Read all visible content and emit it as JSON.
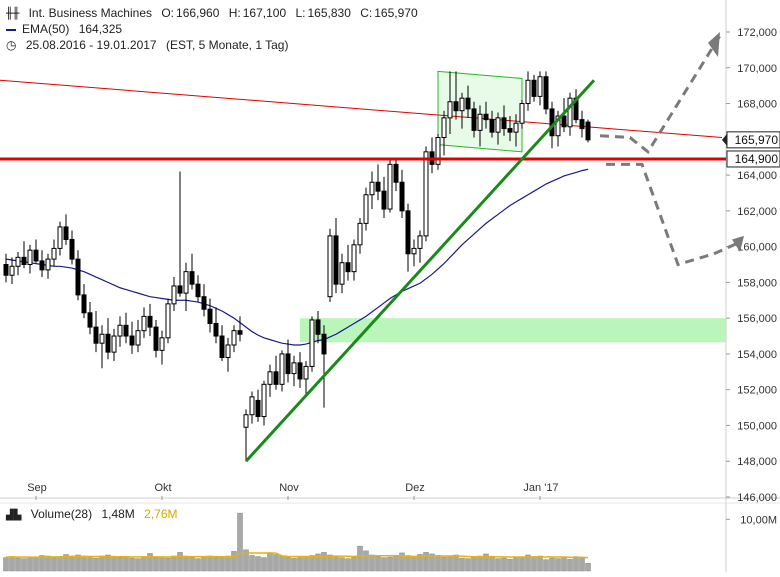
{
  "header": {
    "instrument": "Int. Business Machines",
    "open_label": "O:",
    "open": "166,960",
    "high_label": "H:",
    "high": "167,100",
    "low_label": "L:",
    "low": "165,830",
    "close_label": "C:",
    "close": "165,970",
    "ema_label": "EMA(50)",
    "ema_value": "164,325",
    "range": "25.08.2016 - 19.01.2017",
    "range_info": "(EST, 5 Monate, 1 Tag)"
  },
  "volume_header": {
    "label": "Volume(28)",
    "value": "1,48M",
    "avg": "2,76M"
  },
  "colors": {
    "candle": "#000000",
    "ema": "#1a1a8c",
    "support_line": "#e00000",
    "trend_line": "#1a8a1a",
    "channel": "#22bb22",
    "zone": "#aef5ae",
    "arrows": "#7a7a7a",
    "volume_bar": "#a8a8a8",
    "volume_avg": "#e8b400"
  },
  "chart_data": {
    "type": "candlestick",
    "title": "Int. Business Machines",
    "ylim": [
      146,
      172
    ],
    "y_ticks": [
      "172,000",
      "170,000",
      "168,000",
      "166,000",
      "164,000",
      "162,000",
      "160,000",
      "158,000",
      "156,000",
      "154,000",
      "152,000",
      "150,000",
      "148,000",
      "146,000"
    ],
    "x_ticks": [
      "Sep",
      "Okt",
      "Nov",
      "Dez",
      "Jan '17"
    ],
    "price_labels": {
      "last": "165,970",
      "support": "164,900"
    },
    "volume_tick": "10,00M",
    "candles": [
      {
        "o": 159.0,
        "h": 159.6,
        "l": 158.0,
        "c": 158.4
      },
      {
        "o": 158.4,
        "h": 159.4,
        "l": 157.9,
        "c": 158.9
      },
      {
        "o": 158.9,
        "h": 159.7,
        "l": 158.4,
        "c": 159.4
      },
      {
        "o": 159.4,
        "h": 160.3,
        "l": 158.8,
        "c": 159.0
      },
      {
        "o": 159.0,
        "h": 160.1,
        "l": 158.5,
        "c": 159.8
      },
      {
        "o": 159.8,
        "h": 160.4,
        "l": 159.1,
        "c": 159.2
      },
      {
        "o": 159.2,
        "h": 159.8,
        "l": 158.3,
        "c": 158.7
      },
      {
        "o": 158.7,
        "h": 159.6,
        "l": 158.2,
        "c": 159.3
      },
      {
        "o": 159.3,
        "h": 160.4,
        "l": 158.9,
        "c": 159.9
      },
      {
        "o": 159.9,
        "h": 161.4,
        "l": 159.5,
        "c": 161.1
      },
      {
        "o": 161.1,
        "h": 161.8,
        "l": 160.1,
        "c": 160.4
      },
      {
        "o": 160.4,
        "h": 160.9,
        "l": 159.0,
        "c": 159.3
      },
      {
        "o": 159.3,
        "h": 159.8,
        "l": 157.0,
        "c": 157.3
      },
      {
        "o": 157.3,
        "h": 157.9,
        "l": 156.0,
        "c": 156.3
      },
      {
        "o": 156.3,
        "h": 156.9,
        "l": 155.1,
        "c": 155.5
      },
      {
        "o": 155.5,
        "h": 156.4,
        "l": 154.1,
        "c": 154.6
      },
      {
        "o": 154.6,
        "h": 155.6,
        "l": 153.2,
        "c": 155.1
      },
      {
        "o": 155.1,
        "h": 156.0,
        "l": 153.7,
        "c": 154.1
      },
      {
        "o": 154.1,
        "h": 155.4,
        "l": 153.6,
        "c": 155.0
      },
      {
        "o": 155.0,
        "h": 156.1,
        "l": 154.4,
        "c": 155.6
      },
      {
        "o": 155.6,
        "h": 156.3,
        "l": 154.6,
        "c": 155.0
      },
      {
        "o": 155.0,
        "h": 155.8,
        "l": 154.0,
        "c": 154.5
      },
      {
        "o": 154.5,
        "h": 155.9,
        "l": 154.1,
        "c": 155.3
      },
      {
        "o": 155.3,
        "h": 156.6,
        "l": 154.9,
        "c": 156.1
      },
      {
        "o": 156.1,
        "h": 156.8,
        "l": 155.0,
        "c": 155.5
      },
      {
        "o": 155.5,
        "h": 155.9,
        "l": 153.8,
        "c": 154.2
      },
      {
        "o": 154.2,
        "h": 155.3,
        "l": 153.4,
        "c": 154.9
      },
      {
        "o": 154.9,
        "h": 157.1,
        "l": 154.6,
        "c": 156.8
      },
      {
        "o": 156.8,
        "h": 158.3,
        "l": 156.4,
        "c": 157.8
      },
      {
        "o": 157.8,
        "h": 164.2,
        "l": 157.2,
        "c": 157.4
      },
      {
        "o": 157.4,
        "h": 159.1,
        "l": 156.4,
        "c": 158.6
      },
      {
        "o": 158.6,
        "h": 159.6,
        "l": 157.6,
        "c": 157.9
      },
      {
        "o": 157.9,
        "h": 158.4,
        "l": 156.9,
        "c": 157.2
      },
      {
        "o": 157.2,
        "h": 157.9,
        "l": 156.1,
        "c": 156.5
      },
      {
        "o": 156.5,
        "h": 157.1,
        "l": 155.2,
        "c": 155.7
      },
      {
        "o": 155.7,
        "h": 156.6,
        "l": 154.6,
        "c": 155.0
      },
      {
        "o": 155.0,
        "h": 155.6,
        "l": 153.6,
        "c": 153.8
      },
      {
        "o": 153.8,
        "h": 154.9,
        "l": 153.0,
        "c": 154.5
      },
      {
        "o": 154.5,
        "h": 155.6,
        "l": 154.1,
        "c": 155.3
      },
      {
        "o": 155.3,
        "h": 156.1,
        "l": 154.7,
        "c": 155.1
      },
      {
        "o": 149.9,
        "h": 150.9,
        "l": 148.0,
        "c": 150.6
      },
      {
        "o": 150.6,
        "h": 151.9,
        "l": 150.1,
        "c": 151.6
      },
      {
        "o": 151.4,
        "h": 152.0,
        "l": 150.2,
        "c": 150.5
      },
      {
        "o": 150.5,
        "h": 152.5,
        "l": 150.0,
        "c": 152.3
      },
      {
        "o": 152.3,
        "h": 153.4,
        "l": 151.6,
        "c": 153.0
      },
      {
        "o": 153.0,
        "h": 153.9,
        "l": 152.0,
        "c": 152.3
      },
      {
        "o": 152.3,
        "h": 154.2,
        "l": 151.9,
        "c": 154.0
      },
      {
        "o": 154.0,
        "h": 154.8,
        "l": 152.4,
        "c": 152.9
      },
      {
        "o": 152.9,
        "h": 153.9,
        "l": 152.2,
        "c": 153.5
      },
      {
        "o": 153.5,
        "h": 154.1,
        "l": 152.1,
        "c": 152.6
      },
      {
        "o": 152.6,
        "h": 153.6,
        "l": 151.6,
        "c": 153.3
      },
      {
        "o": 153.3,
        "h": 156.1,
        "l": 153.0,
        "c": 155.9
      },
      {
        "o": 155.9,
        "h": 156.4,
        "l": 154.6,
        "c": 155.1
      },
      {
        "o": 155.1,
        "h": 155.6,
        "l": 151.0,
        "c": 154.0
      },
      {
        "o": 157.2,
        "h": 161.0,
        "l": 156.9,
        "c": 160.6
      },
      {
        "o": 160.6,
        "h": 161.6,
        "l": 157.4,
        "c": 157.9
      },
      {
        "o": 157.9,
        "h": 159.6,
        "l": 157.4,
        "c": 159.1
      },
      {
        "o": 159.1,
        "h": 160.1,
        "l": 158.1,
        "c": 158.6
      },
      {
        "o": 158.6,
        "h": 160.4,
        "l": 158.1,
        "c": 160.1
      },
      {
        "o": 160.1,
        "h": 161.6,
        "l": 159.6,
        "c": 161.3
      },
      {
        "o": 161.3,
        "h": 163.3,
        "l": 160.9,
        "c": 162.9
      },
      {
        "o": 162.9,
        "h": 164.2,
        "l": 162.1,
        "c": 163.6
      },
      {
        "o": 163.6,
        "h": 164.6,
        "l": 162.6,
        "c": 163.1
      },
      {
        "o": 163.1,
        "h": 163.9,
        "l": 161.6,
        "c": 162.1
      },
      {
        "o": 162.1,
        "h": 164.9,
        "l": 161.9,
        "c": 164.6
      },
      {
        "o": 164.6,
        "h": 164.9,
        "l": 163.1,
        "c": 163.6
      },
      {
        "o": 163.6,
        "h": 164.3,
        "l": 161.6,
        "c": 162.0
      },
      {
        "o": 162.0,
        "h": 162.4,
        "l": 158.6,
        "c": 159.6
      },
      {
        "o": 159.6,
        "h": 160.4,
        "l": 158.9,
        "c": 159.9
      },
      {
        "o": 159.9,
        "h": 160.9,
        "l": 159.1,
        "c": 160.6
      },
      {
        "o": 160.6,
        "h": 165.6,
        "l": 160.3,
        "c": 165.3
      },
      {
        "o": 165.3,
        "h": 166.1,
        "l": 164.1,
        "c": 164.6
      },
      {
        "o": 164.6,
        "h": 166.3,
        "l": 164.3,
        "c": 166.1
      },
      {
        "o": 166.1,
        "h": 167.6,
        "l": 165.1,
        "c": 167.2
      },
      {
        "o": 167.2,
        "h": 169.8,
        "l": 166.3,
        "c": 168.1
      },
      {
        "o": 168.1,
        "h": 169.8,
        "l": 167.1,
        "c": 167.6
      },
      {
        "o": 167.6,
        "h": 168.6,
        "l": 166.6,
        "c": 168.3
      },
      {
        "o": 168.3,
        "h": 169.0,
        "l": 167.2,
        "c": 167.7
      },
      {
        "o": 167.7,
        "h": 168.1,
        "l": 166.1,
        "c": 166.5
      },
      {
        "o": 166.5,
        "h": 167.9,
        "l": 165.6,
        "c": 167.4
      },
      {
        "o": 167.4,
        "h": 168.1,
        "l": 166.6,
        "c": 167.1
      },
      {
        "o": 167.1,
        "h": 167.6,
        "l": 166.1,
        "c": 166.4
      },
      {
        "o": 166.4,
        "h": 167.5,
        "l": 165.7,
        "c": 167.2
      },
      {
        "o": 167.2,
        "h": 167.9,
        "l": 166.2,
        "c": 166.6
      },
      {
        "o": 166.6,
        "h": 167.3,
        "l": 165.9,
        "c": 166.4
      },
      {
        "o": 166.4,
        "h": 167.4,
        "l": 165.6,
        "c": 166.9
      },
      {
        "o": 166.9,
        "h": 168.2,
        "l": 166.6,
        "c": 168.0
      },
      {
        "o": 168.0,
        "h": 169.8,
        "l": 167.6,
        "c": 169.3
      },
      {
        "o": 169.3,
        "h": 169.6,
        "l": 168.1,
        "c": 168.4
      },
      {
        "o": 168.4,
        "h": 169.8,
        "l": 167.9,
        "c": 169.5
      },
      {
        "o": 169.5,
        "h": 169.8,
        "l": 167.4,
        "c": 167.7
      },
      {
        "o": 167.7,
        "h": 168.1,
        "l": 165.5,
        "c": 166.2
      },
      {
        "o": 166.2,
        "h": 167.6,
        "l": 165.6,
        "c": 167.3
      },
      {
        "o": 167.3,
        "h": 168.3,
        "l": 166.4,
        "c": 166.7
      },
      {
        "o": 166.7,
        "h": 168.6,
        "l": 166.2,
        "c": 168.3
      },
      {
        "o": 168.3,
        "h": 168.8,
        "l": 166.9,
        "c": 167.1
      },
      {
        "o": 167.1,
        "h": 167.6,
        "l": 166.1,
        "c": 166.6
      },
      {
        "o": 166.96,
        "h": 167.1,
        "l": 165.83,
        "c": 165.97
      }
    ],
    "ema50": [
      159.3,
      159.25,
      159.2,
      159.15,
      159.1,
      159.05,
      159.0,
      158.95,
      158.9,
      158.9,
      158.85,
      158.8,
      158.7,
      158.6,
      158.45,
      158.3,
      158.15,
      158.0,
      157.85,
      157.7,
      157.6,
      157.5,
      157.4,
      157.3,
      157.2,
      157.15,
      157.1,
      157.05,
      157.0,
      157.0,
      157.0,
      156.95,
      156.9,
      156.8,
      156.7,
      156.55,
      156.4,
      156.2,
      156.0,
      155.75,
      155.5,
      155.25,
      155.05,
      154.9,
      154.8,
      154.7,
      154.6,
      154.55,
      154.5,
      154.5,
      154.55,
      154.65,
      154.75,
      154.8,
      154.95,
      155.1,
      155.3,
      155.5,
      155.7,
      155.9,
      156.1,
      156.35,
      156.6,
      156.85,
      157.1,
      157.3,
      157.5,
      157.65,
      157.8,
      157.95,
      158.2,
      158.45,
      158.75,
      159.05,
      159.4,
      159.75,
      160.1,
      160.4,
      160.7,
      161.0,
      161.3,
      161.55,
      161.8,
      162.05,
      162.3,
      162.5,
      162.7,
      162.9,
      163.1,
      163.3,
      163.5,
      163.65,
      163.8,
      163.95,
      164.05,
      164.15,
      164.25,
      164.325
    ],
    "volume": [
      2.6,
      2.8,
      2.5,
      2.4,
      2.7,
      2.6,
      3.0,
      2.9,
      2.7,
      2.8,
      3.2,
      2.9,
      3.1,
      2.8,
      2.6,
      2.5,
      2.9,
      3.1,
      2.8,
      2.6,
      2.7,
      2.5,
      2.4,
      2.8,
      3.4,
      2.6,
      2.7,
      2.5,
      2.9,
      3.6,
      2.8,
      2.6,
      2.4,
      2.7,
      2.9,
      2.6,
      2.8,
      2.9,
      3.8,
      11.2,
      4.1,
      3.0,
      2.8,
      2.6,
      3.4,
      3.2,
      2.9,
      2.7,
      2.5,
      2.6,
      2.8,
      3.0,
      3.3,
      3.6,
      3.1,
      2.8,
      2.6,
      2.4,
      2.7,
      4.8,
      3.9,
      3.1,
      2.8,
      2.6,
      2.7,
      2.9,
      3.5,
      3.0,
      2.8,
      3.2,
      3.6,
      3.3,
      3.0,
      2.7,
      2.9,
      3.1,
      2.5,
      2.4,
      2.7,
      2.9,
      3.3,
      2.6,
      2.4,
      2.5,
      2.3,
      2.6,
      2.7,
      3.1,
      2.8,
      2.9,
      2.2,
      2.5,
      2.4,
      2.6,
      2.3,
      2.8,
      2.5,
      1.48
    ],
    "volume_avg": 2.76
  }
}
